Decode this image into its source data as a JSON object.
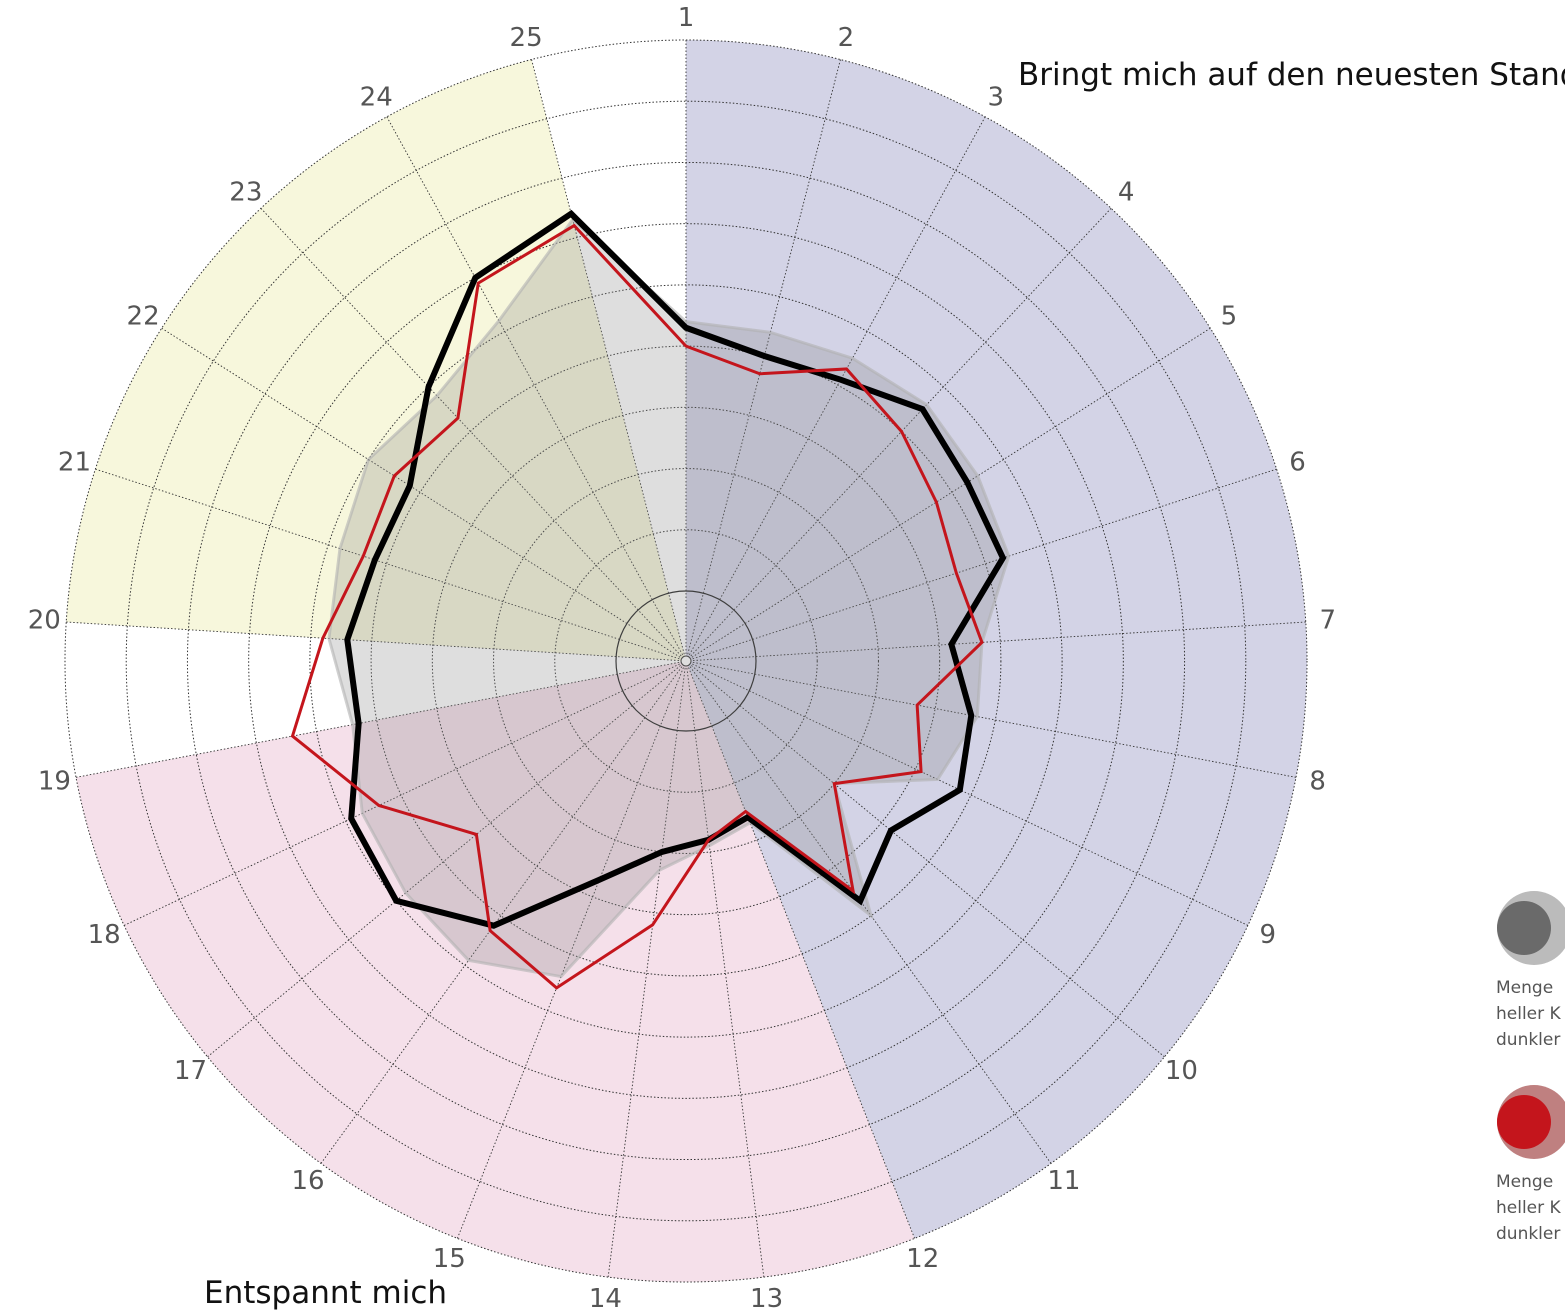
{
  "chart_data": {
    "type": "radar",
    "axes": [
      "1",
      "2",
      "3",
      "4",
      "5",
      "6",
      "7",
      "8",
      "9",
      "10",
      "11",
      "12",
      "13",
      "14",
      "15",
      "16",
      "17",
      "18",
      "19",
      "20",
      "21",
      "22",
      "23",
      "24",
      "25"
    ],
    "rlim": [
      0,
      9
    ],
    "ring_count": 9,
    "group_labels": {
      "top_right": "Bringt mich auf den neuesten Stand",
      "bottom_left": "Entspannt mich"
    },
    "sectors": [
      {
        "from_axis": "1",
        "to_axis": "11",
        "color": "#d3d3e6"
      },
      {
        "from_axis": "12",
        "to_axis": "18",
        "color": "#f5e0ea"
      },
      {
        "from_axis": "20",
        "to_axis": "24",
        "color": "#f7f7dc"
      }
    ],
    "series": [
      {
        "values": [
          4.4,
          4.4,
          4.5,
          4.6,
          4.5,
          4.4,
          3.7,
          3.7,
          3.4,
          2.0,
          4.0,
          1.7,
          1.9,
          2.3,
          4.4,
          4.9,
          4.8,
          4.7,
          4.4,
          4.7,
          4.8,
          5.0,
          4.8,
          5.2,
          6.3
        ],
        "color": "#b0b0b0",
        "fill_color": "#888888",
        "fill_opacity": 0.28
      },
      {
        "values": [
          4.3,
          4.0,
          4.1,
          4.5,
          4.3,
          4.3,
          3.2,
          3.6,
          3.8,
          3.2,
          3.7,
          1.6,
          1.8,
          2.0,
          2.7,
          4.2,
          5.0,
          4.9,
          4.3,
          4.4,
          4.2,
          4.2,
          5.0,
          6.0,
          6.4
        ],
        "color": "#000000",
        "width": 6
      },
      {
        "values": [
          4.0,
          3.7,
          4.3,
          4.0,
          3.7,
          3.5,
          3.7,
          2.7,
          3.1,
          2.0,
          3.5,
          1.5,
          1.8,
          3.2,
          4.6,
          4.3,
          3.3,
          4.4,
          5.4,
          4.8,
          4.4,
          4.5,
          4.3,
          5.9,
          6.2
        ],
        "color": "#c4151c",
        "width": 3
      }
    ],
    "legend": [
      {
        "color_big": "#bbbbbb",
        "color_small": "#6a6a6a",
        "lines": [
          "Menge",
          "heller K",
          "dunkler"
        ]
      },
      {
        "color_big": "#bf8080",
        "color_small": "#c4151c",
        "lines": [
          "Menge",
          "heller K",
          "dunkler"
        ]
      }
    ]
  }
}
